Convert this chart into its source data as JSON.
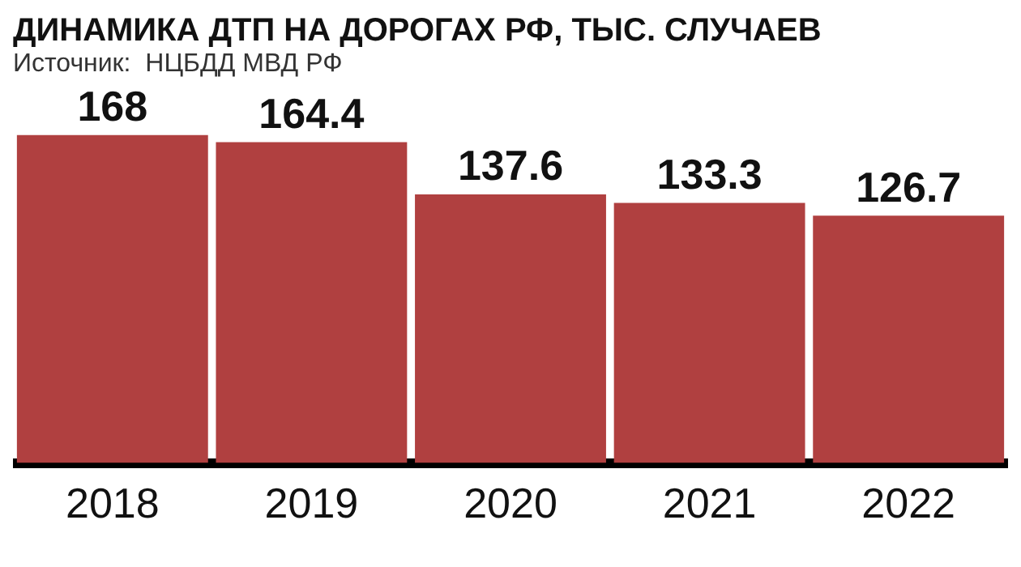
{
  "chart_data": {
    "type": "bar",
    "title": "ДИНАМИКА ДТП НА ДОРОГАХ РФ, ТЫС. СЛУЧАЕВ",
    "annotations": [
      "Источник:  НЦБДД МВД РФ"
    ],
    "categories": [
      "2018",
      "2019",
      "2020",
      "2021",
      "2022"
    ],
    "values": [
      168,
      164.4,
      137.6,
      133.3,
      126.7
    ],
    "color": "#b04040",
    "data_labels": true,
    "grid": false,
    "legend": false
  }
}
